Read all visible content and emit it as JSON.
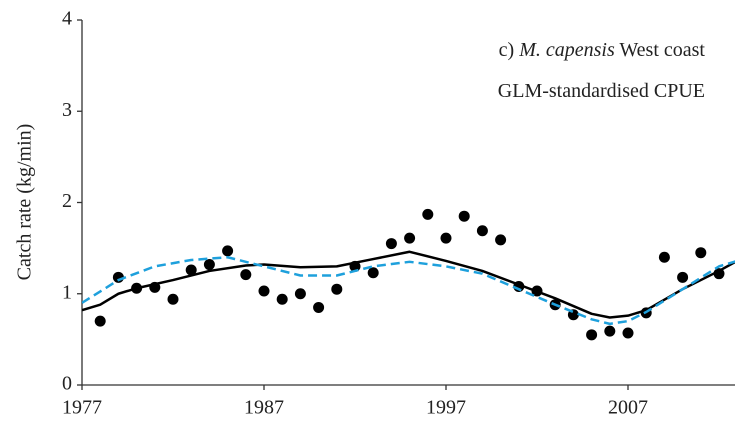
{
  "chart_data": {
    "type": "scatter",
    "ylabel": "Catch rate (kg/min)",
    "annotation": [
      [
        "c)",
        "M. capensis",
        "West coast"
      ],
      [
        "GLM-standardised CPUE"
      ]
    ],
    "xlim": [
      1977,
      2013
    ],
    "ylim": [
      0,
      4
    ],
    "xticks": [
      1977,
      1987,
      1997,
      2007
    ],
    "yticks": [
      0,
      1,
      2,
      3,
      4
    ],
    "series": [
      {
        "style": "points",
        "color": "#000000",
        "x": [
          1978,
          1979,
          1980,
          1981,
          1982,
          1983,
          1984,
          1985,
          1986,
          1987,
          1988,
          1989,
          1990,
          1991,
          1992,
          1993,
          1994,
          1995,
          1996,
          1997,
          1998,
          1999,
          2000,
          2001,
          2002,
          2003,
          2004,
          2005,
          2006,
          2007,
          2008,
          2009,
          2010,
          2011,
          2012
        ],
        "values": [
          0.7,
          1.18,
          1.06,
          1.07,
          0.94,
          1.26,
          1.32,
          1.47,
          1.21,
          1.03,
          0.94,
          1.0,
          0.85,
          1.05,
          1.3,
          1.23,
          1.55,
          1.61,
          1.87,
          1.61,
          1.85,
          1.69,
          1.59,
          1.08,
          1.03,
          0.88,
          0.77,
          0.55,
          0.59,
          0.57,
          0.79,
          1.4,
          1.18,
          1.45,
          1.22
        ]
      },
      {
        "style": "solid",
        "color": "#000000",
        "x": [
          1977,
          1978,
          1979,
          1980,
          1982,
          1984,
          1986,
          1987,
          1989,
          1991,
          1993,
          1995,
          1997,
          1999,
          2001,
          2003,
          2005,
          2006,
          2007,
          2008,
          2010,
          2012,
          2013
        ],
        "values": [
          0.82,
          0.88,
          1.0,
          1.06,
          1.15,
          1.25,
          1.31,
          1.32,
          1.29,
          1.3,
          1.38,
          1.46,
          1.36,
          1.25,
          1.1,
          0.95,
          0.78,
          0.74,
          0.76,
          0.82,
          1.05,
          1.25,
          1.36
        ]
      },
      {
        "style": "dashed",
        "color": "#1ea0dc",
        "x": [
          1977,
          1979,
          1981,
          1983,
          1985,
          1987,
          1989,
          1991,
          1993,
          1995,
          1997,
          1999,
          2001,
          2003,
          2005,
          2006,
          2007,
          2008,
          2010,
          2012,
          2013
        ],
        "values": [
          0.9,
          1.15,
          1.3,
          1.37,
          1.4,
          1.3,
          1.2,
          1.2,
          1.3,
          1.35,
          1.3,
          1.22,
          1.05,
          0.88,
          0.72,
          0.67,
          0.7,
          0.8,
          1.05,
          1.3,
          1.36
        ]
      }
    ]
  }
}
